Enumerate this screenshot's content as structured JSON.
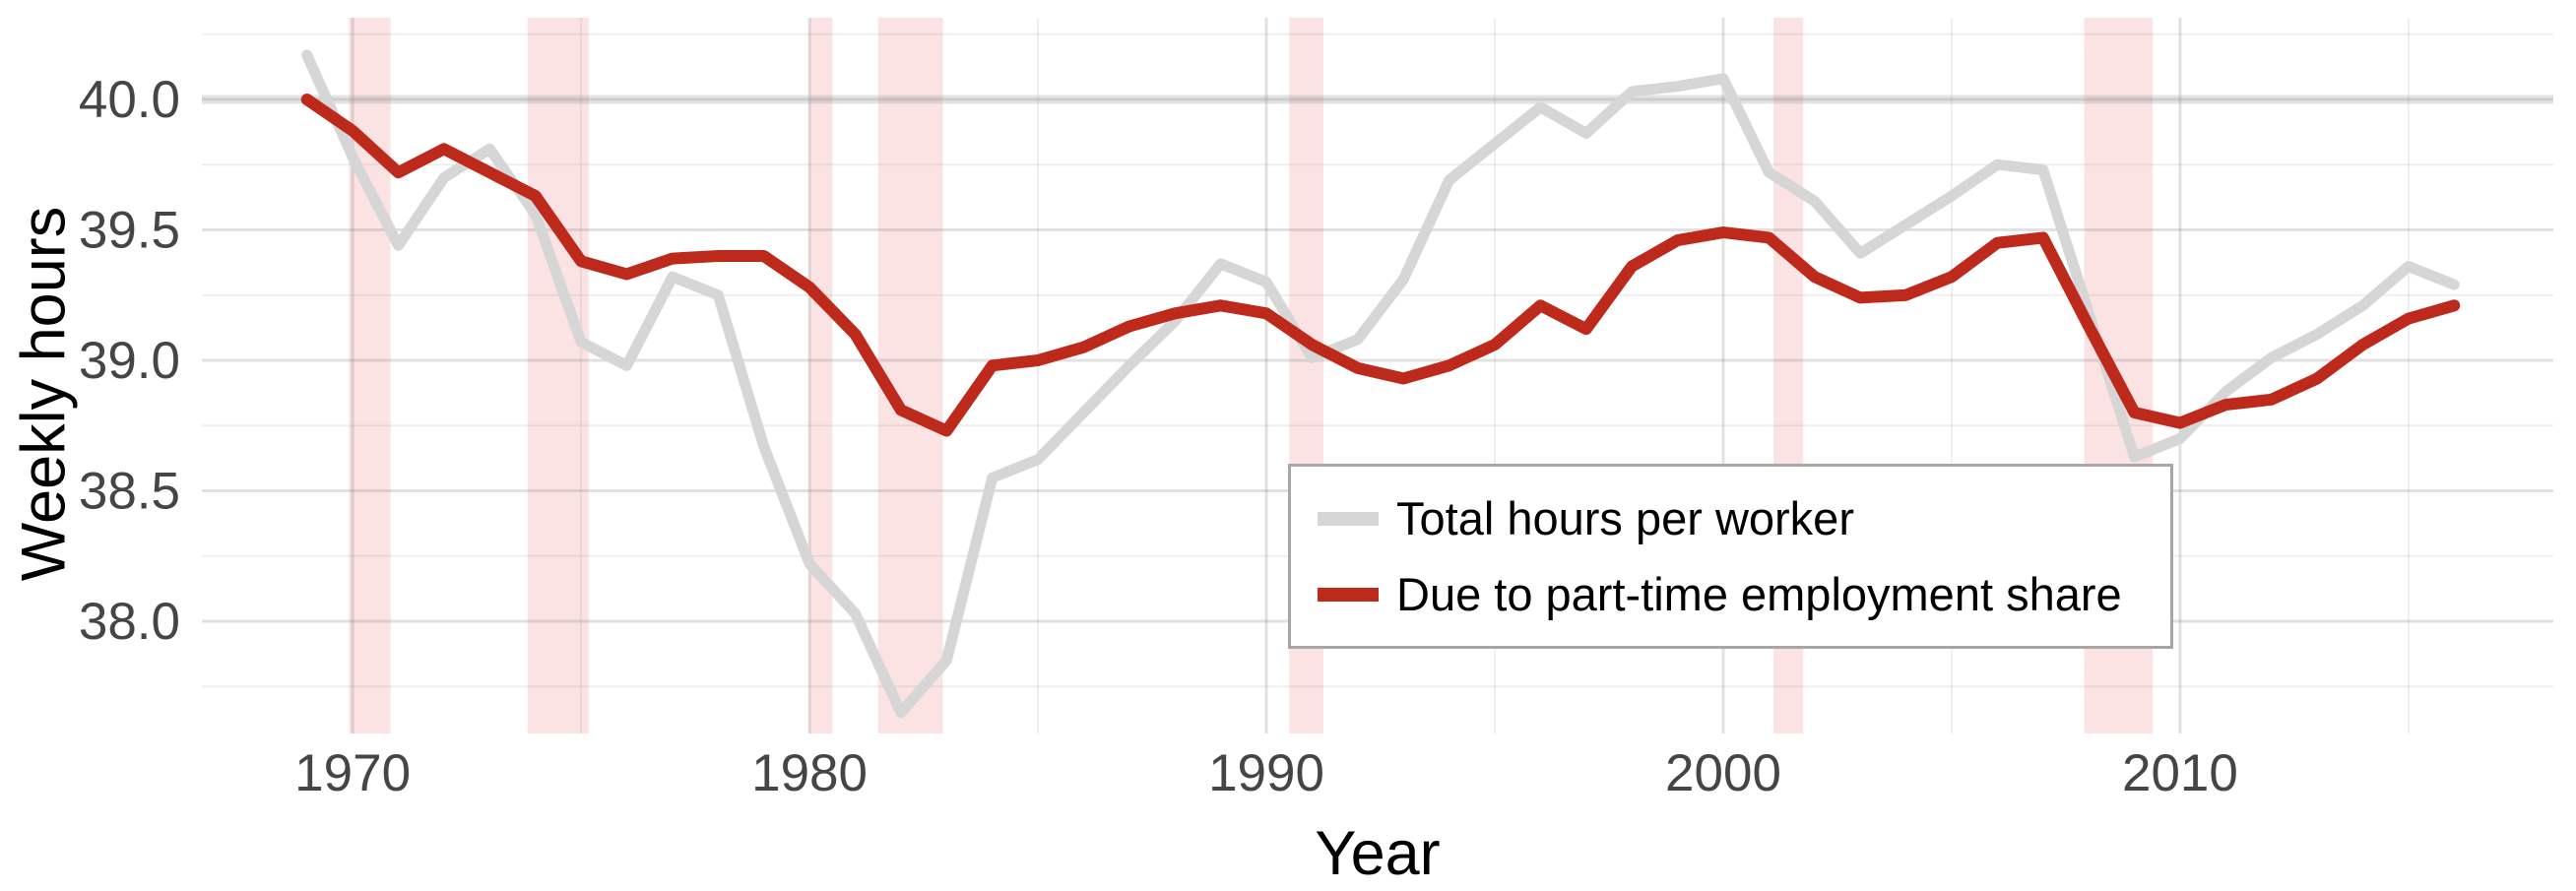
{
  "page": {
    "background": "#ffffff"
  },
  "chart_data": {
    "type": "line",
    "title": "",
    "xlabel": "Year",
    "ylabel": "Weekly hours",
    "xlim": [
      1966.7,
      2018.17
    ],
    "ylim": [
      37.57,
      40.313
    ],
    "x_ticks": {
      "values": [
        1970,
        1980,
        1990,
        2000,
        2010
      ],
      "labels": [
        "1970",
        "1980",
        "1990",
        "2000",
        "2010"
      ],
      "minor_values": [
        1975,
        1985,
        1995,
        2005,
        2015
      ]
    },
    "y_ticks": {
      "values": [
        38.0,
        38.5,
        39.0,
        39.5,
        40.0
      ],
      "labels": [
        "38.0",
        "38.5",
        "39.0",
        "39.5",
        "40.0"
      ],
      "minor_values": [
        37.75,
        38.25,
        38.75,
        39.25,
        39.75,
        40.25
      ]
    },
    "grid": {
      "on": true,
      "major_color": "rgba(120,120,120,0.22)",
      "minor_color": "rgba(120,120,120,0.12)"
    },
    "tick_label_color": "#454545",
    "x": [
      1969,
      1970,
      1971,
      1972,
      1973,
      1974,
      1975,
      1976,
      1977,
      1978,
      1979,
      1980,
      1981,
      1982,
      1983,
      1984,
      1985,
      1986,
      1987,
      1988,
      1989,
      1990,
      1991,
      1992,
      1993,
      1994,
      1995,
      1996,
      1997,
      1998,
      1999,
      2000,
      2001,
      2002,
      2003,
      2004,
      2005,
      2006,
      2007,
      2008,
      2009,
      2010,
      2011,
      2012,
      2013,
      2014,
      2015,
      2016
    ],
    "series": [
      {
        "name": "Total hours per worker",
        "color": "#d6d6d6",
        "line_width": 11,
        "values": [
          40.17,
          39.78,
          39.44,
          39.7,
          39.81,
          39.56,
          39.07,
          38.98,
          39.32,
          39.25,
          38.67,
          38.22,
          38.03,
          37.65,
          37.85,
          38.55,
          38.62,
          38.8,
          38.98,
          39.15,
          39.37,
          39.3,
          39.01,
          39.08,
          39.31,
          39.69,
          39.83,
          39.97,
          39.87,
          40.03,
          40.05,
          40.08,
          39.72,
          39.61,
          39.41,
          39.52,
          39.63,
          39.75,
          39.73,
          39.18,
          38.63,
          38.7,
          38.88,
          39.01,
          39.1,
          39.21,
          39.36,
          39.29
        ]
      },
      {
        "name": "Due to part-time employment share",
        "color": "#bd2a1c",
        "line_width": 12,
        "values": [
          40.0,
          39.88,
          39.72,
          39.81,
          39.72,
          39.63,
          39.38,
          39.33,
          39.39,
          39.4,
          39.4,
          39.28,
          39.1,
          38.81,
          38.73,
          38.98,
          39.0,
          39.05,
          39.13,
          39.18,
          39.21,
          39.18,
          39.06,
          38.97,
          38.93,
          38.98,
          39.06,
          39.21,
          39.12,
          39.36,
          39.46,
          39.49,
          39.47,
          39.32,
          39.24,
          39.25,
          39.32,
          39.45,
          39.47,
          39.13,
          38.8,
          38.76,
          38.83,
          38.85,
          38.93,
          39.06,
          39.16,
          39.21
        ]
      }
    ],
    "reference_line": {
      "y": 40.0,
      "color": "rgba(153,153,153,0.28)",
      "width": 9
    },
    "recession_bands": {
      "color": "#fbe3e3",
      "ranges": [
        [
          1969.92,
          1970.83
        ],
        [
          1973.83,
          1975.17
        ],
        [
          1980.0,
          1980.5
        ],
        [
          1981.5,
          1982.92
        ],
        [
          1990.5,
          1991.25
        ],
        [
          2001.1,
          2001.75
        ],
        [
          2007.9,
          2009.4
        ]
      ]
    },
    "legend_position": "center-right"
  },
  "legend": {
    "border_color": "#a6a6a6"
  }
}
